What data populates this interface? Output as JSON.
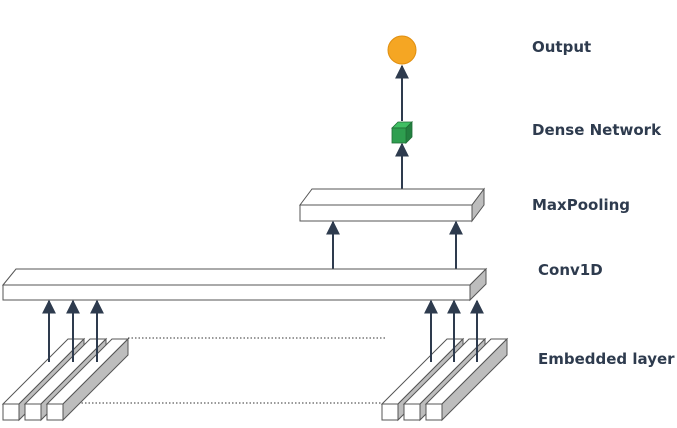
{
  "labels": {
    "output": "Output",
    "dense": "Dense Network",
    "maxpool": "MaxPooling",
    "conv": "Conv1D",
    "embedded": "Embedded layer"
  },
  "colors": {
    "output_node": "#f5a623",
    "dense_cube": "#2e9e4f",
    "arrow": "#2e3b4e",
    "layer_side": "#bdbdbd",
    "layer_face": "#ffffff"
  }
}
